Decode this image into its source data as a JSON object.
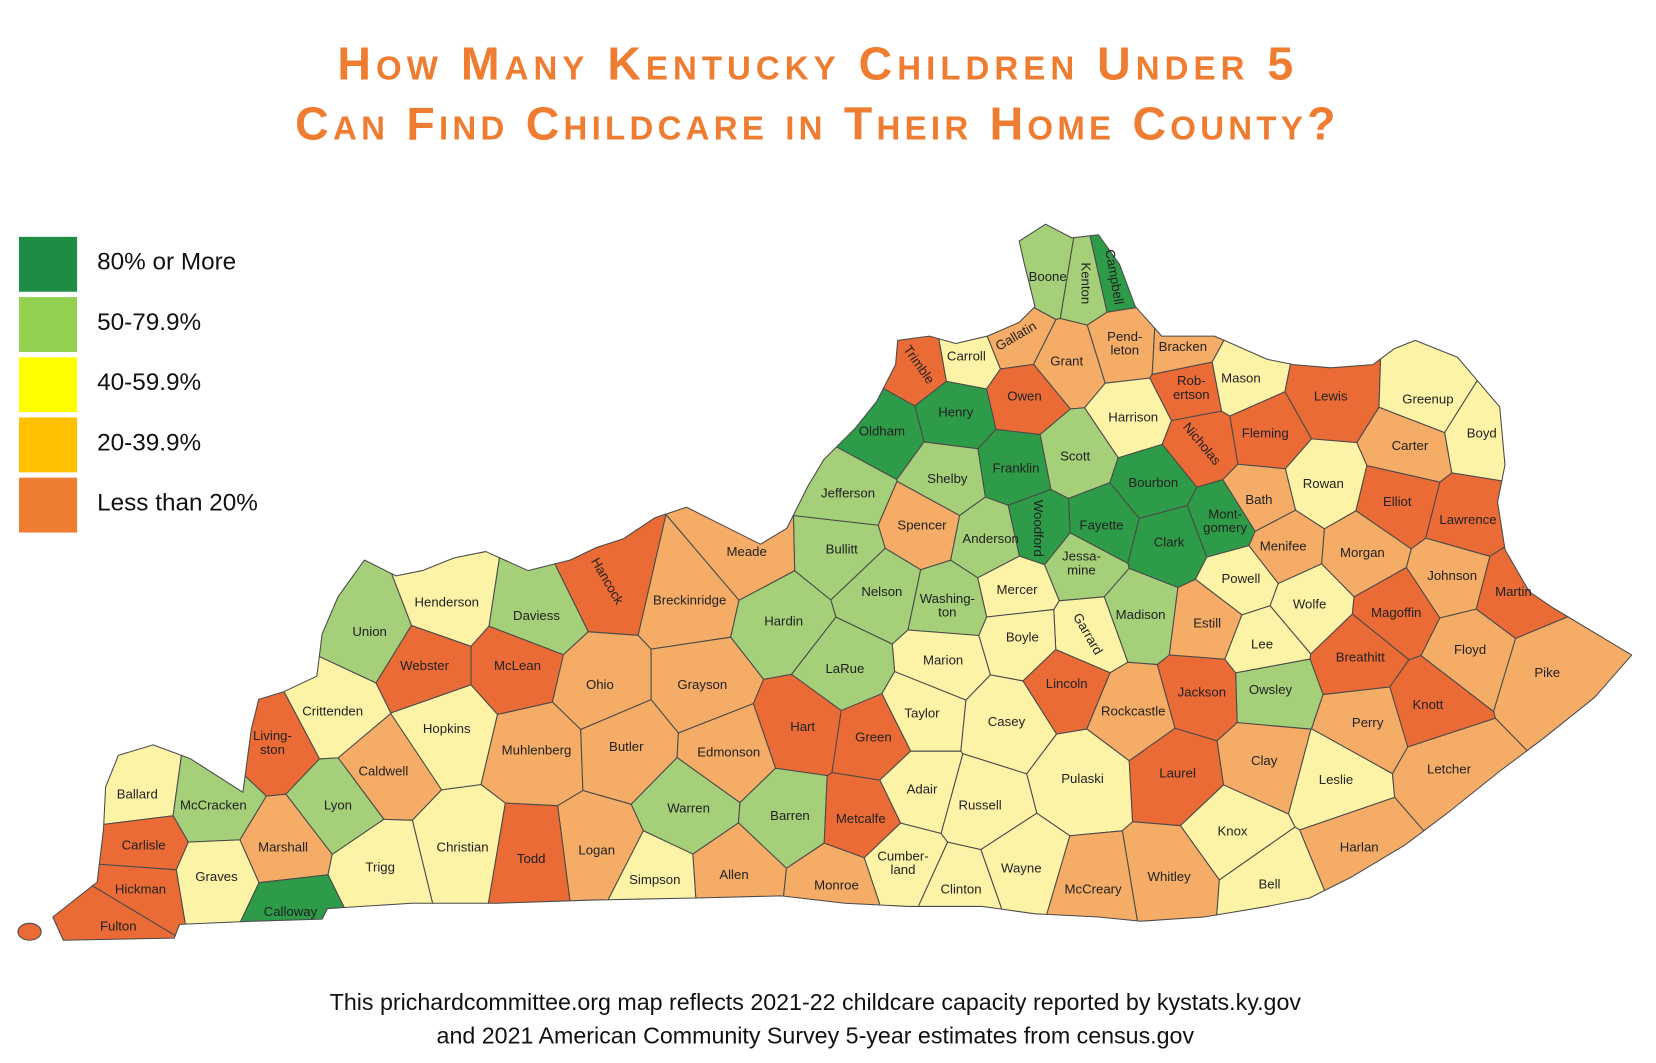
{
  "title": [
    "How Many Kentucky Children Under 5",
    "Can Find Childcare in Their Home County?"
  ],
  "legend": [
    {
      "label": "80% or More",
      "color": "#1e8c45",
      "map_color": "#2e9b48"
    },
    {
      "label": "50-79.9%",
      "color": "#92d050",
      "map_color": "#a5cf78"
    },
    {
      "label": "40-59.9%",
      "color": "#ffff00",
      "map_color": "#fdf3a7"
    },
    {
      "label": "20-39.9%",
      "color": "#ffc000",
      "map_color": "#f5ac66"
    },
    {
      "label": "Less than 20%",
      "color": "#ed7d31",
      "map_color": "#ea6b35"
    }
  ],
  "counties": [
    {
      "label": [
        "Boone"
      ],
      "category": "50-79.9%"
    },
    {
      "label": [
        "Kenton"
      ],
      "category": "50-79.9%"
    },
    {
      "label": [
        "Campbell"
      ],
      "category": "80% or More"
    },
    {
      "label": [
        "Gallatin"
      ],
      "category": "20-39.9%"
    },
    {
      "label": [
        "Carroll"
      ],
      "category": "40-59.9%"
    },
    {
      "label": [
        "Trimble"
      ],
      "category": "Less than 20%"
    },
    {
      "label": [
        "Grant"
      ],
      "category": "20-39.9%"
    },
    {
      "label": [
        "Pend-",
        "leton"
      ],
      "category": "20-39.9%"
    },
    {
      "label": [
        "Bracken"
      ],
      "category": "20-39.9%"
    },
    {
      "label": [
        "Mason"
      ],
      "category": "40-59.9%"
    },
    {
      "label": [
        "Rob-",
        "ertson"
      ],
      "category": "Less than 20%"
    },
    {
      "label": [
        "Owen"
      ],
      "category": "Less than 20%"
    },
    {
      "label": [
        "Henry"
      ],
      "category": "80% or More"
    },
    {
      "label": [
        "Oldham"
      ],
      "category": "80% or More"
    },
    {
      "label": [
        "Harrison"
      ],
      "category": "40-59.9%"
    },
    {
      "label": [
        "Lewis"
      ],
      "category": "Less than 20%"
    },
    {
      "label": [
        "Greenup"
      ],
      "category": "40-59.9%"
    },
    {
      "label": [
        "Boyd"
      ],
      "category": "40-59.9%"
    },
    {
      "label": [
        "Fleming"
      ],
      "category": "Less than 20%"
    },
    {
      "label": [
        "Nicholas"
      ],
      "category": "Less than 20%"
    },
    {
      "label": [
        "Scott"
      ],
      "category": "50-79.9%"
    },
    {
      "label": [
        "Franklin"
      ],
      "category": "80% or More"
    },
    {
      "label": [
        "Shelby"
      ],
      "category": "50-79.9%"
    },
    {
      "label": [
        "Jefferson"
      ],
      "category": "50-79.9%"
    },
    {
      "label": [
        "Carter"
      ],
      "category": "20-39.9%"
    },
    {
      "label": [
        "Bourbon"
      ],
      "category": "80% or More"
    },
    {
      "label": [
        "Bath"
      ],
      "category": "20-39.9%"
    },
    {
      "label": [
        "Rowan"
      ],
      "category": "40-59.9%"
    },
    {
      "label": [
        "Elliot"
      ],
      "category": "Less than 20%"
    },
    {
      "label": [
        "Lawrence"
      ],
      "category": "Less than 20%"
    },
    {
      "label": [
        "Spencer"
      ],
      "category": "20-39.9%"
    },
    {
      "label": [
        "Fayette"
      ],
      "category": "80% or More"
    },
    {
      "label": [
        "Woodford"
      ],
      "category": "80% or More"
    },
    {
      "label": [
        "Anderson"
      ],
      "category": "50-79.9%"
    },
    {
      "label": [
        "Bullitt"
      ],
      "category": "50-79.9%"
    },
    {
      "label": [
        "Clark"
      ],
      "category": "80% or More"
    },
    {
      "label": [
        "Mont-",
        "gomery"
      ],
      "category": "80% or More"
    },
    {
      "label": [
        "Menifee"
      ],
      "category": "20-39.9%"
    },
    {
      "label": [
        "Morgan"
      ],
      "category": "20-39.9%"
    },
    {
      "label": [
        "Meade"
      ],
      "category": "20-39.9%"
    },
    {
      "label": [
        "Hancock"
      ],
      "category": "Less than 20%"
    },
    {
      "label": [
        "Jessa-",
        "mine"
      ],
      "category": "50-79.9%"
    },
    {
      "label": [
        "Mercer"
      ],
      "category": "40-59.9%"
    },
    {
      "label": [
        "Johnson"
      ],
      "category": "20-39.9%"
    },
    {
      "label": [
        "Martin"
      ],
      "category": "Less than 20%"
    },
    {
      "label": [
        "Nelson"
      ],
      "category": "50-79.9%"
    },
    {
      "label": [
        "Powell"
      ],
      "category": "40-59.9%"
    },
    {
      "label": [
        "Wolfe"
      ],
      "category": "40-59.9%"
    },
    {
      "label": [
        "Henderson"
      ],
      "category": "40-59.9%"
    },
    {
      "label": [
        "Breckinridge"
      ],
      "category": "20-39.9%"
    },
    {
      "label": [
        "Washing-",
        "ton"
      ],
      "category": "50-79.9%"
    },
    {
      "label": [
        "Daviess"
      ],
      "category": "50-79.9%"
    },
    {
      "label": [
        "Union"
      ],
      "category": "50-79.9%"
    },
    {
      "label": [
        "Magoffin"
      ],
      "category": "Less than 20%"
    },
    {
      "label": [
        "Hardin"
      ],
      "category": "50-79.9%"
    },
    {
      "label": [
        "Madison"
      ],
      "category": "50-79.9%"
    },
    {
      "label": [
        "Estill"
      ],
      "category": "20-39.9%"
    },
    {
      "label": [
        "Garrard"
      ],
      "category": "40-59.9%"
    },
    {
      "label": [
        "Boyle"
      ],
      "category": "40-59.9%"
    },
    {
      "label": [
        "Lee"
      ],
      "category": "40-59.9%"
    },
    {
      "label": [
        "Floyd"
      ],
      "category": "20-39.9%"
    },
    {
      "label": [
        "Pike"
      ],
      "category": "20-39.9%"
    },
    {
      "label": [
        "Breathitt"
      ],
      "category": "Less than 20%"
    },
    {
      "label": [
        "Webster"
      ],
      "category": "Less than 20%"
    },
    {
      "label": [
        "McLean"
      ],
      "category": "Less than 20%"
    },
    {
      "label": [
        "Marion"
      ],
      "category": "40-59.9%"
    },
    {
      "label": [
        "LaRue"
      ],
      "category": "50-79.9%"
    },
    {
      "label": [
        "Lincoln"
      ],
      "category": "Less than 20%"
    },
    {
      "label": [
        "Ohio"
      ],
      "category": "20-39.9%"
    },
    {
      "label": [
        "Grayson"
      ],
      "category": "20-39.9%"
    },
    {
      "label": [
        "Owsley"
      ],
      "category": "50-79.9%"
    },
    {
      "label": [
        "Jackson"
      ],
      "category": "Less than 20%"
    },
    {
      "label": [
        "Knott"
      ],
      "category": "Less than 20%"
    },
    {
      "label": [
        "Crittenden"
      ],
      "category": "40-59.9%"
    },
    {
      "label": [
        "Rockcastle"
      ],
      "category": "20-39.9%"
    },
    {
      "label": [
        "Taylor"
      ],
      "category": "40-59.9%"
    },
    {
      "label": [
        "Living-",
        "ston"
      ],
      "category": "Less than 20%"
    },
    {
      "label": [
        "Hopkins"
      ],
      "category": "40-59.9%"
    },
    {
      "label": [
        "Hart"
      ],
      "category": "Less than 20%"
    },
    {
      "label": [
        "Green"
      ],
      "category": "Less than 20%"
    },
    {
      "label": [
        "Casey"
      ],
      "category": "40-59.9%"
    },
    {
      "label": [
        "Perry"
      ],
      "category": "20-39.9%"
    },
    {
      "label": [
        "Muhlenberg"
      ],
      "category": "20-39.9%"
    },
    {
      "label": [
        "Butler"
      ],
      "category": "20-39.9%"
    },
    {
      "label": [
        "Edmonson"
      ],
      "category": "20-39.9%"
    },
    {
      "label": [
        "Caldwell"
      ],
      "category": "20-39.9%"
    },
    {
      "label": [
        "Clay"
      ],
      "category": "20-39.9%"
    },
    {
      "label": [
        "Ballard"
      ],
      "category": "40-59.9%"
    },
    {
      "label": [
        "McCracken"
      ],
      "category": "50-79.9%"
    },
    {
      "label": [
        "Lyon"
      ],
      "category": "50-79.9%"
    },
    {
      "label": [
        "Pulaski"
      ],
      "category": "40-59.9%"
    },
    {
      "label": [
        "Laurel"
      ],
      "category": "Less than 20%"
    },
    {
      "label": [
        "Leslie"
      ],
      "category": "40-59.9%"
    },
    {
      "label": [
        "Letcher"
      ],
      "category": "20-39.9%"
    },
    {
      "label": [
        "Adair"
      ],
      "category": "40-59.9%"
    },
    {
      "label": [
        "Warren"
      ],
      "category": "50-79.9%"
    },
    {
      "label": [
        "Barren"
      ],
      "category": "50-79.9%"
    },
    {
      "label": [
        "Metcalfe"
      ],
      "category": "Less than 20%"
    },
    {
      "label": [
        "Russell"
      ],
      "category": "40-59.9%"
    },
    {
      "label": [
        "Carlisle"
      ],
      "category": "Less than 20%"
    },
    {
      "label": [
        "Marshall"
      ],
      "category": "20-39.9%"
    },
    {
      "label": [
        "Christian"
      ],
      "category": "40-59.9%"
    },
    {
      "label": [
        "Harlan"
      ],
      "category": "20-39.9%"
    },
    {
      "label": [
        "Knox"
      ],
      "category": "40-59.9%"
    },
    {
      "label": [
        "Logan"
      ],
      "category": "20-39.9%"
    },
    {
      "label": [
        "Todd"
      ],
      "category": "Less than 20%"
    },
    {
      "label": [
        "Trigg"
      ],
      "category": "40-59.9%"
    },
    {
      "label": [
        "Graves"
      ],
      "category": "40-59.9%"
    },
    {
      "label": [
        "Wayne"
      ],
      "category": "40-59.9%"
    },
    {
      "label": [
        "Cumber-",
        "land"
      ],
      "category": "40-59.9%"
    },
    {
      "label": [
        "Allen"
      ],
      "category": "20-39.9%"
    },
    {
      "label": [
        "Whitley"
      ],
      "category": "20-39.9%"
    },
    {
      "label": [
        "Simpson"
      ],
      "category": "40-59.9%"
    },
    {
      "label": [
        "Monroe"
      ],
      "category": "20-39.9%"
    },
    {
      "label": [
        "Hickman"
      ],
      "category": "Less than 20%"
    },
    {
      "label": [
        "Clinton"
      ],
      "category": "40-59.9%"
    },
    {
      "label": [
        "McCreary"
      ],
      "category": "20-39.9%"
    },
    {
      "label": [
        "Bell"
      ],
      "category": "40-59.9%"
    },
    {
      "label": [
        "Calloway"
      ],
      "category": "80% or More"
    },
    {
      "label": [
        "Fulton"
      ],
      "category": "Less than 20%"
    }
  ],
  "source": [
    "This prichardcommittee.org map reflects 2021-22 childcare capacity reported by kystats.ky.gov",
    "and 2021 American Community Survey 5-year estimates from census.gov"
  ]
}
